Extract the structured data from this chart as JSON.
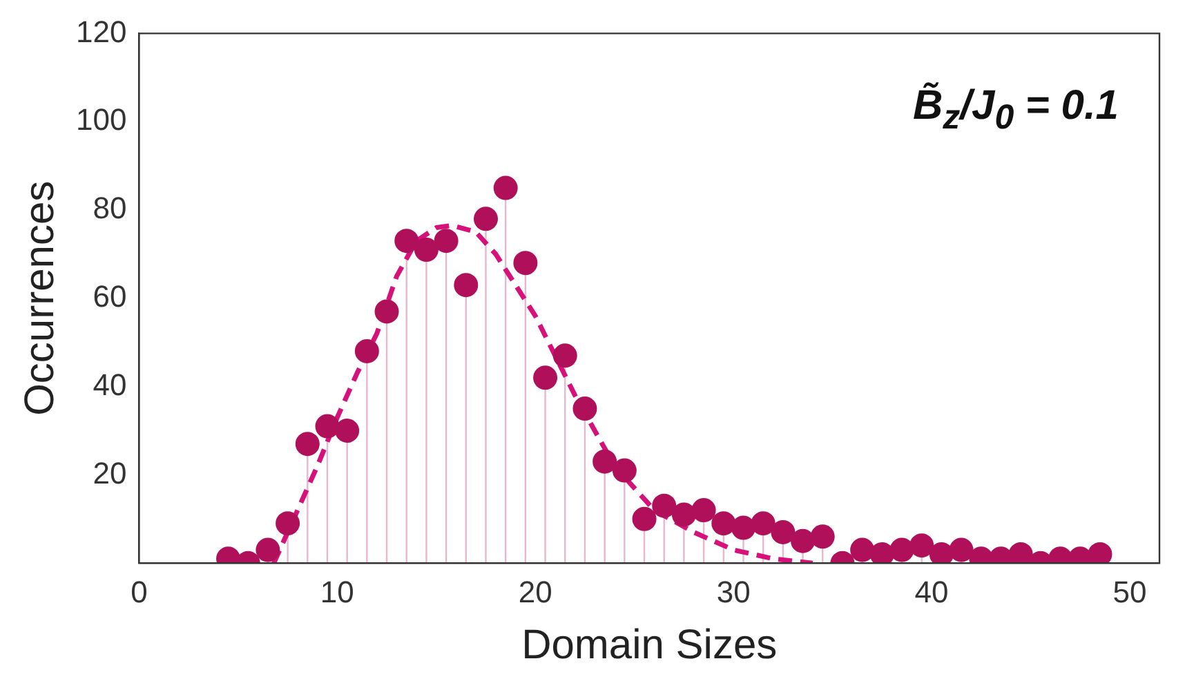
{
  "chart_data": {
    "type": "lollipop",
    "xlabel": "Domain Sizes",
    "ylabel": "Occurrences",
    "annotations": [
      "B̃$_{z}$/J$_{0}$ = 0.1"
    ],
    "xlim": [
      0,
      51.5
    ],
    "xticks": [
      0,
      10,
      20,
      30,
      40,
      50
    ],
    "ylim": [
      0,
      120
    ],
    "yticks": [
      20,
      40,
      60,
      80,
      100,
      120
    ],
    "grid": false,
    "legend": false,
    "series": [
      {
        "color": "#b0105a",
        "marker": "circle",
        "x": [
          4.5,
          5.5,
          6.5,
          7.5,
          8.5,
          9.5,
          10.5,
          11.5,
          12.5,
          13.5,
          14.5,
          15.5,
          16.5,
          17.5,
          18.5,
          19.5,
          20.5,
          21.5,
          22.5,
          23.5,
          24.5,
          25.5,
          26.5,
          27.5,
          28.5,
          29.5,
          30.5,
          31.5,
          32.5,
          33.5,
          34.5,
          35.5,
          36.5,
          37.5,
          38.5,
          39.5,
          40.5,
          41.5,
          42.5,
          43.5,
          44.5,
          45.5,
          46.5,
          47.5,
          48.5
        ],
        "values": [
          1,
          0,
          3,
          9,
          27,
          31,
          30,
          48,
          57,
          73,
          71,
          73,
          63,
          78,
          85,
          68,
          42,
          47,
          35,
          23,
          21,
          10,
          13,
          11,
          12,
          9,
          8,
          9,
          7,
          5,
          6,
          0,
          3,
          2,
          3,
          4,
          2,
          3,
          1,
          1,
          2,
          0,
          1,
          1,
          2
        ]
      },
      {
        "type": "line",
        "color": "#d6127a",
        "marker": "none",
        "line_style": "dashed",
        "x": [
          6.8,
          7.5,
          9,
          10,
          11,
          12,
          13,
          14,
          15,
          15.8,
          17,
          18,
          19,
          20,
          21,
          22,
          23,
          24,
          25,
          26,
          28,
          30,
          32,
          34
        ],
        "values": [
          0,
          7,
          22,
          33,
          43,
          52,
          65,
          73,
          76,
          76.5,
          75,
          70,
          63,
          56,
          47,
          38,
          30,
          22,
          17,
          12,
          7,
          3,
          1,
          0
        ]
      }
    ]
  }
}
